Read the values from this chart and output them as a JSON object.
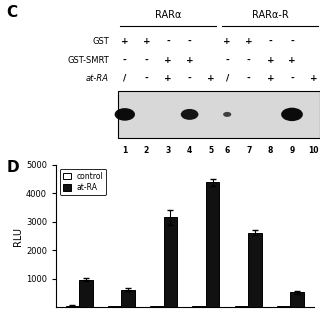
{
  "panel_label_C": "C",
  "panel_label_D": "D",
  "gel_title_left": "RARα",
  "gel_title_right": "RARα-R",
  "lane_numbers": [
    "1",
    "2",
    "3",
    "4",
    "5",
    "6",
    "7",
    "8",
    "9",
    "10"
  ],
  "gst_vals": [
    "+",
    "+",
    "-",
    "-",
    " ",
    "+",
    "+",
    "-",
    "-",
    " "
  ],
  "smrt_vals": [
    "-",
    "-",
    "+",
    "+",
    " ",
    "-",
    "-",
    "+",
    "+",
    " "
  ],
  "atra_vals": [
    "/",
    "-",
    "+",
    "-",
    "+",
    "/",
    "-",
    "+",
    "-",
    "+"
  ],
  "spots": [
    {
      "lane": 1,
      "size": 0.075,
      "alpha": 0.95
    },
    {
      "lane": 4,
      "size": 0.065,
      "alpha": 0.9
    },
    {
      "lane": 6,
      "size": 0.03,
      "alpha": 0.7
    },
    {
      "lane": 9,
      "size": 0.08,
      "alpha": 0.95
    }
  ],
  "bar_groups": [
    {
      "control": 50,
      "atRA": 970,
      "atRA_err": 55
    },
    {
      "control": 50,
      "atRA": 620,
      "atRA_err": 40
    },
    {
      "control": 50,
      "atRA": 3150,
      "atRA_err": 280
    },
    {
      "control": 50,
      "atRA": 4380,
      "atRA_err": 130
    },
    {
      "control": 50,
      "atRA": 2620,
      "atRA_err": 90
    },
    {
      "control": 50,
      "atRA": 520,
      "atRA_err": 50
    }
  ],
  "ylabel": "RLU",
  "ylim": [
    0,
    5000
  ],
  "yticks": [
    1000,
    2000,
    3000,
    4000,
    5000
  ],
  "legend_control": "control",
  "legend_atRA": "at-RA",
  "bar_width": 0.32,
  "background_color": "#ffffff",
  "bar_color_control": "#ffffff",
  "bar_color_atRA": "#111111",
  "bar_edge_color": "#000000"
}
